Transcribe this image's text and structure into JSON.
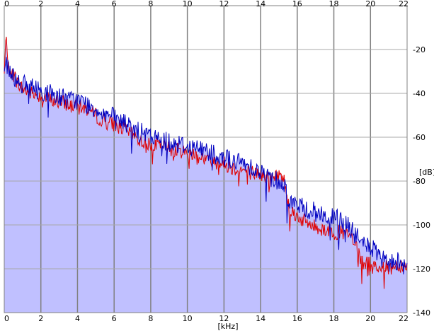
{
  "chart_data": {
    "type": "line",
    "xlabel": "[kHz]",
    "ylabel": "[dB]",
    "xlim": [
      0,
      22
    ],
    "ylim": [
      -140,
      0
    ],
    "x_ticks": [
      0,
      2,
      4,
      6,
      8,
      10,
      12,
      14,
      16,
      18,
      20,
      22
    ],
    "x_tick_labels": [
      "0",
      "2",
      "4",
      "6",
      "8",
      "10",
      "12",
      "14",
      "16",
      "18",
      "20",
      "22"
    ],
    "y_ticks": [
      -20,
      -40,
      -60,
      -80,
      -100,
      -120,
      -140
    ],
    "y_tick_labels": [
      "-20",
      "-40",
      "-60",
      "-80",
      "-100",
      "-120",
      "-140"
    ],
    "grid": true,
    "background_color": "#ffffff",
    "fill_color": "#c0c0ff",
    "series": [
      {
        "color": "#e00000",
        "x": [
          0,
          0.1,
          0.2,
          0.4,
          0.6,
          0.8,
          1,
          1.5,
          2,
          2.5,
          3,
          3.5,
          4,
          4.5,
          5,
          5.5,
          6,
          6.5,
          7,
          7.5,
          8,
          8.5,
          9,
          9.5,
          10,
          10.5,
          11,
          11.5,
          12,
          12.5,
          13,
          13.5,
          14,
          14.5,
          15,
          15.3,
          15.6,
          16,
          16.5,
          17,
          17.5,
          18,
          18.5,
          19,
          19.5,
          20,
          20.5,
          21,
          21.5,
          22
        ],
        "values": [
          -31,
          -12,
          -28,
          -30,
          -33,
          -36,
          -38,
          -40,
          -41,
          -43,
          -44,
          -45,
          -46,
          -47,
          -50,
          -53,
          -54,
          -56,
          -59,
          -62,
          -63,
          -64,
          -65,
          -66,
          -67,
          -68,
          -70,
          -71,
          -72,
          -74,
          -75,
          -76,
          -77,
          -79,
          -77,
          -80,
          -93,
          -96,
          -99,
          -101,
          -102,
          -103,
          -104,
          -106,
          -117,
          -118,
          -119,
          -120,
          -118,
          -119
        ]
      },
      {
        "color": "#0000c0",
        "x": [
          0,
          0.1,
          0.2,
          0.4,
          0.6,
          0.8,
          1,
          1.5,
          2,
          2.5,
          3,
          3.5,
          4,
          4.5,
          5,
          5.5,
          6,
          6.5,
          7,
          7.5,
          8,
          8.5,
          9,
          9.5,
          10,
          10.5,
          11,
          11.5,
          12,
          12.5,
          13,
          13.5,
          14,
          14.5,
          15,
          15.3,
          15.6,
          16,
          16.5,
          17,
          17.5,
          18,
          18.5,
          19,
          19.5,
          20,
          20.5,
          21,
          21.5,
          22
        ],
        "values": [
          -30,
          -25,
          -28,
          -31,
          -33,
          -34,
          -36,
          -37,
          -39,
          -40,
          -41,
          -43,
          -43,
          -45,
          -47,
          -49,
          -51,
          -53,
          -56,
          -58,
          -60,
          -61,
          -62,
          -63,
          -64,
          -65,
          -66,
          -67,
          -69,
          -71,
          -72,
          -73,
          -76,
          -78,
          -80,
          -82,
          -89,
          -91,
          -93,
          -94,
          -96,
          -97,
          -98,
          -103,
          -108,
          -110,
          -115,
          -118,
          -116,
          -117
        ]
      }
    ]
  }
}
